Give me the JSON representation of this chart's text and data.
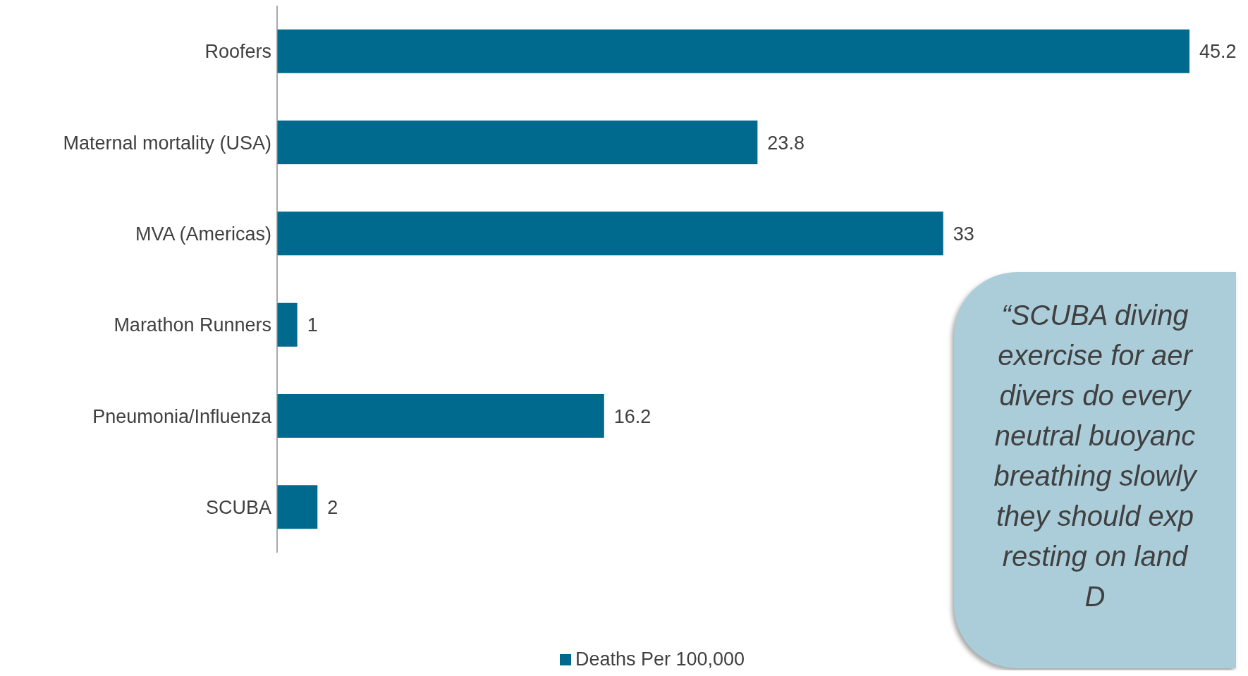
{
  "chart_data": {
    "type": "bar",
    "orientation": "horizontal",
    "categories": [
      "Roofers",
      "Maternal mortality (USA)",
      "MVA (Americas)",
      "Marathon Runners",
      "Pneumonia/Influenza",
      "SCUBA"
    ],
    "series": [
      {
        "name": "Deaths Per 100,000",
        "color": "#006a8e",
        "values": [
          45.2,
          23.8,
          33,
          1,
          16.2,
          2
        ]
      }
    ],
    "data_labels": true,
    "legend": "bottom",
    "annotations": [
      "“SCUBA diving\nexercise for aer\ndivers do every\nneutral buoyanc\nbreathing slowly\nthey should exp\nresting on land\nD"
    ]
  }
}
